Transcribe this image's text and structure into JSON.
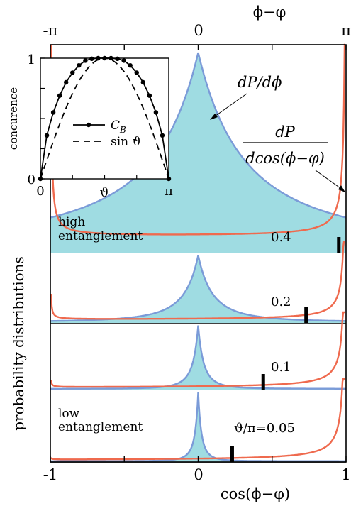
{
  "chart_data": {
    "type": "line",
    "top_axis": {
      "label": "ϕ−φ",
      "ticks": [
        {
          "value": -1,
          "label": "-π"
        },
        {
          "value": 0,
          "label": "0"
        },
        {
          "value": 1,
          "label": "π"
        }
      ]
    },
    "bottom_axis": {
      "label": "cos(ϕ−φ)",
      "ticks": [
        {
          "value": -1,
          "label": "-1"
        },
        {
          "value": 0,
          "label": "0"
        },
        {
          "value": 1,
          "label": "1"
        }
      ],
      "xlim": [
        -1,
        1
      ]
    },
    "ylabel": "probability distributions",
    "series_labels": {
      "blue": "dP/dϕ",
      "red_numerator": "dP",
      "red_denominator": "dcos(ϕ−φ)"
    },
    "colors": {
      "blue": "#7b9bd8",
      "fill": "#9fdce2",
      "red": "#ef6a4e",
      "axis": "#000000"
    },
    "panels": [
      {
        "param_label": "0.4",
        "theta_over_pi": 0.4,
        "marker_x": 0.951,
        "note_line1": "high",
        "note_line2": "entanglement"
      },
      {
        "param_label": "0.2",
        "theta_over_pi": 0.2,
        "marker_x": 0.73,
        "note_line1": "",
        "note_line2": ""
      },
      {
        "param_label": "0.1",
        "theta_over_pi": 0.1,
        "marker_x": 0.44,
        "note_line1": "",
        "note_line2": ""
      },
      {
        "param_label": "ϑ/π=0.05",
        "theta_over_pi": 0.05,
        "marker_x": 0.23,
        "note_line1": "low",
        "note_line2": "entanglement"
      }
    ],
    "inset": {
      "ylabel": "concurence",
      "xlabel": "ϑ",
      "x_ticks": [
        "0",
        "π"
      ],
      "y_ticks": [
        "0",
        "1"
      ],
      "legend": [
        {
          "name": "C_B",
          "main": "C",
          "sub": "B",
          "style": "solid-dots"
        },
        {
          "name": "sin ϑ",
          "style": "dashed"
        }
      ],
      "CB_points": [
        [
          0.0,
          0.0
        ],
        [
          0.05,
          0.36
        ],
        [
          0.1,
          0.55
        ],
        [
          0.15,
          0.69
        ],
        [
          0.2,
          0.8
        ],
        [
          0.25,
          0.88
        ],
        [
          0.3,
          0.94
        ],
        [
          0.35,
          0.98
        ],
        [
          0.4,
          0.995
        ],
        [
          0.45,
          1.0
        ],
        [
          0.5,
          1.0
        ],
        [
          0.55,
          1.0
        ],
        [
          0.6,
          0.995
        ],
        [
          0.65,
          0.98
        ],
        [
          0.7,
          0.94
        ],
        [
          0.75,
          0.88
        ],
        [
          0.8,
          0.8
        ],
        [
          0.85,
          0.69
        ],
        [
          0.9,
          0.55
        ],
        [
          0.95,
          0.36
        ],
        [
          1.0,
          0.0
        ]
      ]
    }
  }
}
